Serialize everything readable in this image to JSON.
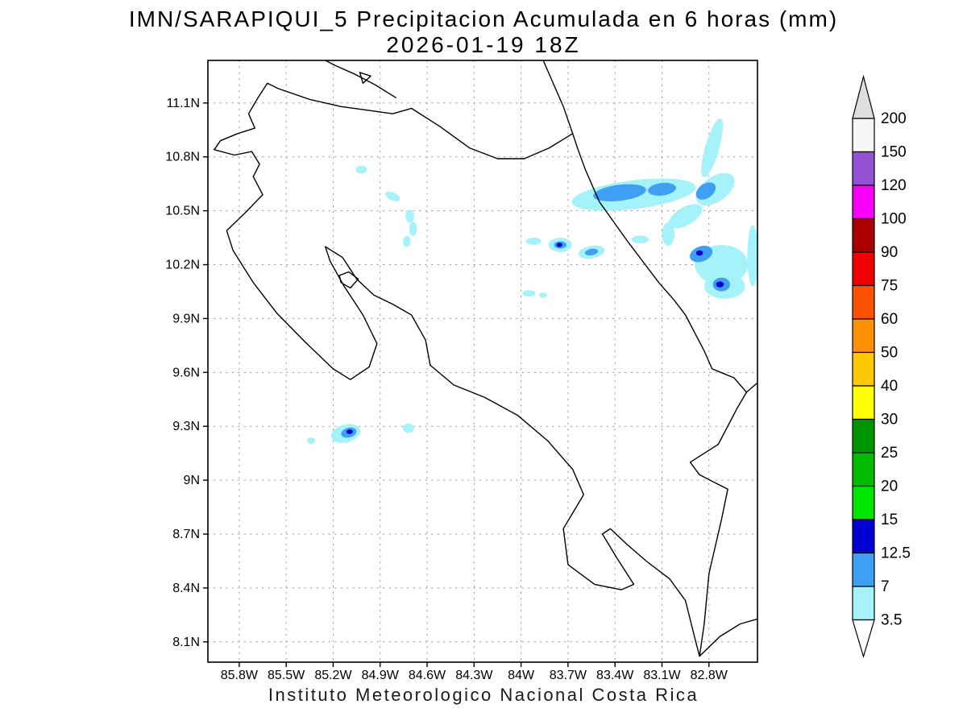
{
  "title": {
    "line1": "IMN/SARAPIQUI_5 Precipitacion Acumulada en 6 horas (mm)",
    "line2": "2026-01-19 18Z"
  },
  "footer": "Instituto Meteorologico Nacional Costa Rica",
  "chart_data": {
    "type": "heatmap",
    "subtype": "filled-contour-precipitation-map",
    "title": "IMN/SARAPIQUI_5 Precipitacion Acumulada en 6 horas (mm)",
    "subtitle": "2026-01-19 18Z",
    "units": "mm",
    "grid": "dotted",
    "projection": {
      "lon_west": 86.0,
      "lon_east": 82.49,
      "lat_north": 11.337,
      "lat_south": 7.987
    },
    "x_ticks": [
      {
        "value": 85.8,
        "label": "85.8W"
      },
      {
        "value": 85.5,
        "label": "85.5W"
      },
      {
        "value": 85.2,
        "label": "85.2W"
      },
      {
        "value": 84.9,
        "label": "84.9W"
      },
      {
        "value": 84.6,
        "label": "84.6W"
      },
      {
        "value": 84.3,
        "label": "84.3W"
      },
      {
        "value": 84.0,
        "label": "84W"
      },
      {
        "value": 83.7,
        "label": "83.7W"
      },
      {
        "value": 83.4,
        "label": "83.4W"
      },
      {
        "value": 83.1,
        "label": "83.1W"
      },
      {
        "value": 82.8,
        "label": "82.8W"
      }
    ],
    "y_ticks": [
      {
        "value": 11.1,
        "label": "11.1N"
      },
      {
        "value": 10.8,
        "label": "10.8N"
      },
      {
        "value": 10.5,
        "label": "10.5N"
      },
      {
        "value": 10.2,
        "label": "10.2N"
      },
      {
        "value": 9.9,
        "label": "9.9N"
      },
      {
        "value": 9.6,
        "label": "9.6N"
      },
      {
        "value": 9.3,
        "label": "9.3N"
      },
      {
        "value": 9.0,
        "label": "9N"
      },
      {
        "value": 8.7,
        "label": "8.7N"
      },
      {
        "value": 8.4,
        "label": "8.4N"
      },
      {
        "value": 8.1,
        "label": "8.1N"
      }
    ],
    "colorbar": {
      "levels": [
        "3.5",
        "7",
        "12.5",
        "15",
        "20",
        "25",
        "30",
        "40",
        "50",
        "60",
        "75",
        "90",
        "100",
        "120",
        "150",
        "200"
      ],
      "colors": [
        "#a6f2fa",
        "#3f9ff2",
        "#0000d2",
        "#00e400",
        "#00bb00",
        "#009400",
        "#ffff00",
        "#ffc800",
        "#ff9000",
        "#ff5200",
        "#f00000",
        "#aa0000",
        "#fa00fa",
        "#9450d2",
        "#f6f6f6"
      ],
      "under_color": "#ffffff",
      "over_color": "#dedede",
      "legend_position": "right"
    },
    "coastlines": [
      {
        "name": "costa-rica-coastline",
        "closed": true,
        "points": [
          [
            85.74,
            11.04
          ],
          [
            85.7,
            10.96
          ],
          [
            85.81,
            10.93
          ],
          [
            85.92,
            10.89
          ],
          [
            85.96,
            10.84
          ],
          [
            85.83,
            10.81
          ],
          [
            85.72,
            10.83
          ],
          [
            85.67,
            10.76
          ],
          [
            85.71,
            10.69
          ],
          [
            85.65,
            10.59
          ],
          [
            85.76,
            10.49
          ],
          [
            85.88,
            10.39
          ],
          [
            85.84,
            10.28
          ],
          [
            85.71,
            10.1
          ],
          [
            85.56,
            9.93
          ],
          [
            85.38,
            9.77
          ],
          [
            85.2,
            9.62
          ],
          [
            85.09,
            9.56
          ],
          [
            84.97,
            9.63
          ],
          [
            84.92,
            9.76
          ],
          [
            85.01,
            9.92
          ],
          [
            85.13,
            10.08
          ],
          [
            85.22,
            10.22
          ],
          [
            85.25,
            10.3
          ],
          [
            85.14,
            10.24
          ],
          [
            85.05,
            10.12
          ],
          [
            84.94,
            10.03
          ],
          [
            84.82,
            9.98
          ],
          [
            84.7,
            9.92
          ],
          [
            84.61,
            9.78
          ],
          [
            84.58,
            9.64
          ],
          [
            84.43,
            9.53
          ],
          [
            84.23,
            9.46
          ],
          [
            84.02,
            9.36
          ],
          [
            83.83,
            9.22
          ],
          [
            83.67,
            9.06
          ],
          [
            83.6,
            8.92
          ],
          [
            83.73,
            8.73
          ],
          [
            83.7,
            8.53
          ],
          [
            83.53,
            8.42
          ],
          [
            83.36,
            8.39
          ],
          [
            83.28,
            8.42
          ],
          [
            83.39,
            8.57
          ],
          [
            83.48,
            8.7
          ],
          [
            83.43,
            8.73
          ],
          [
            83.32,
            8.64
          ],
          [
            83.2,
            8.55
          ],
          [
            83.05,
            8.45
          ],
          [
            82.95,
            8.33
          ],
          [
            82.89,
            8.12
          ],
          [
            82.86,
            8.02
          ],
          [
            82.83,
            8.2
          ],
          [
            82.8,
            8.48
          ],
          [
            82.72,
            8.78
          ],
          [
            82.68,
            8.95
          ],
          [
            82.86,
            9.03
          ],
          [
            82.92,
            9.1
          ],
          [
            82.74,
            9.2
          ],
          [
            82.62,
            9.4
          ],
          [
            82.56,
            9.49
          ],
          [
            82.64,
            9.57
          ],
          [
            82.78,
            9.62
          ],
          [
            82.83,
            9.72
          ],
          [
            82.95,
            9.92
          ],
          [
            83.02,
            10.0
          ],
          [
            83.12,
            10.1
          ],
          [
            83.32,
            10.33
          ],
          [
            83.5,
            10.55
          ],
          [
            83.59,
            10.73
          ],
          [
            83.64,
            10.85
          ],
          [
            83.67,
            10.93
          ],
          [
            83.82,
            10.85
          ],
          [
            83.98,
            10.79
          ],
          [
            84.15,
            10.79
          ],
          [
            84.33,
            10.85
          ],
          [
            84.52,
            10.97
          ],
          [
            84.7,
            11.07
          ],
          [
            84.82,
            11.04
          ],
          [
            84.98,
            11.06
          ],
          [
            85.15,
            11.08
          ],
          [
            85.35,
            11.12
          ],
          [
            85.55,
            11.18
          ],
          [
            85.62,
            11.21
          ],
          [
            85.68,
            11.13
          ]
        ]
      },
      {
        "name": "chira-island",
        "closed": true,
        "points": [
          [
            85.16,
            10.14
          ],
          [
            85.1,
            10.16
          ],
          [
            85.04,
            10.12
          ],
          [
            85.09,
            10.07
          ],
          [
            85.15,
            10.1
          ]
        ]
      },
      {
        "name": "nicaragua-caribbean-coast",
        "closed": false,
        "points": [
          [
            83.67,
            10.93
          ],
          [
            83.73,
            11.08
          ],
          [
            83.8,
            11.22
          ],
          [
            83.87,
            11.36
          ]
        ]
      },
      {
        "name": "lake-nicaragua-shore",
        "closed": false,
        "points": [
          [
            84.8,
            11.13
          ],
          [
            84.93,
            11.2
          ],
          [
            85.06,
            11.26
          ],
          [
            85.19,
            11.31
          ],
          [
            85.3,
            11.36
          ]
        ]
      },
      {
        "name": "solentiname-island",
        "closed": true,
        "points": [
          [
            85.01,
            11.21
          ],
          [
            84.96,
            11.25
          ],
          [
            85.03,
            11.27
          ]
        ]
      },
      {
        "name": "panama-caribbean-coast",
        "closed": false,
        "points": [
          [
            82.56,
            9.49
          ],
          [
            82.48,
            9.55
          ]
        ]
      },
      {
        "name": "panama-pacific-coast",
        "closed": false,
        "points": [
          [
            82.86,
            8.02
          ],
          [
            82.73,
            8.13
          ],
          [
            82.6,
            8.2
          ],
          [
            82.48,
            8.23
          ]
        ]
      }
    ],
    "precip_cells_format": [
      "lon_w",
      "lat_n",
      "rx_deg",
      "ry_deg",
      "rotation_deg",
      "level_index"
    ],
    "precip_cells": [
      [
        85.02,
        10.73,
        0.035,
        0.022,
        0,
        0
      ],
      [
        84.82,
        10.58,
        0.05,
        0.022,
        25,
        0
      ],
      [
        84.71,
        10.47,
        0.028,
        0.035,
        0,
        0
      ],
      [
        84.69,
        10.4,
        0.024,
        0.04,
        0,
        0
      ],
      [
        84.73,
        10.33,
        0.024,
        0.03,
        0,
        0
      ],
      [
        83.28,
        10.59,
        0.4,
        0.08,
        -7,
        0
      ],
      [
        82.95,
        10.47,
        0.12,
        0.05,
        -30,
        0
      ],
      [
        82.78,
        10.85,
        0.045,
        0.17,
        16,
        0
      ],
      [
        82.76,
        10.62,
        0.14,
        0.07,
        -35,
        0
      ],
      [
        83.92,
        10.33,
        0.05,
        0.02,
        0,
        0
      ],
      [
        83.75,
        10.31,
        0.075,
        0.04,
        0,
        0
      ],
      [
        83.55,
        10.27,
        0.085,
        0.035,
        -10,
        0
      ],
      [
        83.24,
        10.34,
        0.055,
        0.022,
        0,
        0
      ],
      [
        83.06,
        10.37,
        0.04,
        0.065,
        0,
        0
      ],
      [
        82.72,
        10.2,
        0.17,
        0.11,
        0,
        0
      ],
      [
        82.7,
        10.08,
        0.13,
        0.07,
        0,
        0
      ],
      [
        82.52,
        10.25,
        0.035,
        0.17,
        0,
        0
      ],
      [
        83.95,
        10.04,
        0.042,
        0.018,
        0,
        0
      ],
      [
        83.86,
        10.03,
        0.026,
        0.015,
        0,
        0
      ],
      [
        85.34,
        9.22,
        0.026,
        0.018,
        0,
        0
      ],
      [
        85.12,
        9.26,
        0.095,
        0.05,
        -15,
        0
      ],
      [
        84.72,
        9.29,
        0.036,
        0.026,
        0,
        0
      ],
      [
        83.37,
        10.6,
        0.17,
        0.045,
        -7,
        1
      ],
      [
        83.1,
        10.62,
        0.09,
        0.035,
        -7,
        1
      ],
      [
        82.82,
        10.61,
        0.07,
        0.04,
        -35,
        1
      ],
      [
        83.75,
        10.31,
        0.04,
        0.02,
        0,
        1
      ],
      [
        83.55,
        10.27,
        0.042,
        0.018,
        -10,
        1
      ],
      [
        82.85,
        10.26,
        0.075,
        0.042,
        -20,
        1
      ],
      [
        82.72,
        10.09,
        0.055,
        0.038,
        0,
        1
      ],
      [
        85.1,
        9.265,
        0.05,
        0.027,
        -15,
        1
      ],
      [
        83.755,
        10.31,
        0.018,
        0.012,
        0,
        2
      ],
      [
        82.86,
        10.265,
        0.022,
        0.015,
        0,
        2
      ],
      [
        82.73,
        10.09,
        0.025,
        0.016,
        0,
        2
      ],
      [
        85.095,
        9.27,
        0.02,
        0.013,
        0,
        2
      ]
    ]
  }
}
